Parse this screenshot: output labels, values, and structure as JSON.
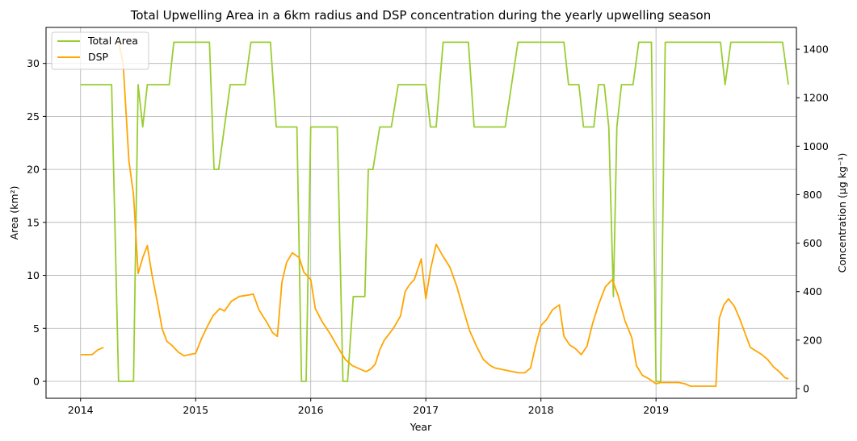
{
  "chart_data": {
    "type": "line",
    "title": "Total Upwelling Area in a 6km radius and DSP concentration during the yearly upwelling season",
    "xlabel": "Year",
    "ylabel_left": "Area (km²)",
    "ylabel_right": "Concentration (µg kg⁻¹)",
    "xlim": [
      2013.7,
      2020.22
    ],
    "ylim_left": [
      -1.6,
      33.4
    ],
    "ylim_right": [
      -40,
      1490
    ],
    "x_ticks": [
      2014,
      2015,
      2016,
      2017,
      2018,
      2019
    ],
    "x_tick_labels": [
      "2014",
      "2015",
      "2016",
      "2017",
      "2018",
      "2019"
    ],
    "y_ticks_left": [
      0,
      5,
      10,
      15,
      20,
      25,
      30
    ],
    "y_ticks_right": [
      0,
      200,
      400,
      600,
      800,
      1000,
      1200,
      1400
    ],
    "grid": true,
    "legend": "top-left",
    "series": [
      {
        "name": "Total Area",
        "axis": "left",
        "color": "#9acd32",
        "segments": [
          [
            [
              2014.0,
              28
            ],
            [
              2014.27,
              28
            ],
            [
              2014.33,
              0
            ],
            [
              2014.46,
              0
            ],
            [
              2014.5,
              28
            ],
            [
              2014.54,
              24
            ],
            [
              2014.58,
              28
            ],
            [
              2014.77,
              28
            ],
            [
              2014.81,
              32
            ],
            [
              2015.12,
              32
            ],
            [
              2015.16,
              20
            ],
            [
              2015.2,
              20
            ],
            [
              2015.3,
              28
            ],
            [
              2015.43,
              28
            ],
            [
              2015.48,
              32
            ],
            [
              2015.65,
              32
            ],
            [
              2015.7,
              24
            ],
            [
              2015.88,
              24
            ],
            [
              2015.92,
              0
            ],
            [
              2015.96,
              0
            ],
            [
              2016.0,
              24
            ],
            [
              2016.23,
              24
            ],
            [
              2016.28,
              0
            ],
            [
              2016.32,
              0
            ],
            [
              2016.37,
              8
            ],
            [
              2016.47,
              8
            ],
            [
              2016.5,
              20
            ],
            [
              2016.54,
              20
            ],
            [
              2016.6,
              24
            ],
            [
              2016.7,
              24
            ],
            [
              2016.76,
              28
            ],
            [
              2017.0,
              28
            ],
            [
              2017.04,
              24
            ],
            [
              2017.09,
              24
            ],
            [
              2017.15,
              32
            ],
            [
              2017.37,
              32
            ],
            [
              2017.42,
              24
            ],
            [
              2017.69,
              24
            ],
            [
              2017.8,
              32
            ],
            [
              2018.2,
              32
            ],
            [
              2018.24,
              28
            ],
            [
              2018.33,
              28
            ],
            [
              2018.37,
              24
            ],
            [
              2018.46,
              24
            ],
            [
              2018.5,
              28
            ],
            [
              2018.55,
              28
            ],
            [
              2018.59,
              24
            ],
            [
              2018.63,
              8
            ],
            [
              2018.66,
              24
            ],
            [
              2018.7,
              28
            ],
            [
              2018.8,
              28
            ],
            [
              2018.85,
              32
            ],
            [
              2018.96,
              32
            ],
            [
              2019.0,
              0
            ],
            [
              2019.04,
              0
            ],
            [
              2019.08,
              32
            ],
            [
              2019.56,
              32
            ],
            [
              2019.6,
              28
            ],
            [
              2019.65,
              32
            ],
            [
              2020.1,
              32
            ],
            [
              2020.15,
              28
            ]
          ]
        ]
      },
      {
        "name": "DSP",
        "axis": "right",
        "color": "#ffa500",
        "segments": [
          [
            [
              2014.0,
              140
            ],
            [
              2014.1,
              140
            ],
            [
              2014.15,
              160
            ],
            [
              2014.2,
              170
            ]
          ],
          [
            [
              2014.33,
              1430
            ],
            [
              2014.37,
              1340
            ],
            [
              2014.42,
              940
            ],
            [
              2014.46,
              800
            ],
            [
              2014.5,
              475
            ],
            [
              2014.54,
              540
            ],
            [
              2014.58,
              590
            ],
            [
              2014.62,
              470
            ],
            [
              2014.67,
              350
            ],
            [
              2014.71,
              245
            ],
            [
              2014.75,
              195
            ],
            [
              2014.79,
              180
            ],
            [
              2014.85,
              150
            ],
            [
              2014.9,
              135
            ],
            [
              2014.94,
              140
            ],
            [
              2015.0,
              145
            ],
            [
              2015.05,
              205
            ],
            [
              2015.1,
              255
            ],
            [
              2015.15,
              300
            ],
            [
              2015.21,
              330
            ],
            [
              2015.25,
              320
            ],
            [
              2015.31,
              360
            ],
            [
              2015.38,
              380
            ],
            [
              2015.45,
              385
            ],
            [
              2015.5,
              390
            ],
            [
              2015.55,
              325
            ],
            [
              2015.61,
              280
            ],
            [
              2015.67,
              230
            ],
            [
              2015.71,
              215
            ],
            [
              2015.75,
              440
            ],
            [
              2015.79,
              520
            ],
            [
              2015.84,
              560
            ],
            [
              2015.9,
              540
            ],
            [
              2015.94,
              480
            ],
            [
              2016.0,
              450
            ],
            [
              2016.04,
              330
            ],
            [
              2016.1,
              275
            ],
            [
              2016.17,
              225
            ],
            [
              2016.23,
              175
            ],
            [
              2016.3,
              120
            ],
            [
              2016.36,
              95
            ],
            [
              2016.43,
              80
            ],
            [
              2016.48,
              70
            ],
            [
              2016.52,
              80
            ],
            [
              2016.56,
              100
            ],
            [
              2016.6,
              160
            ],
            [
              2016.64,
              200
            ],
            [
              2016.72,
              250
            ],
            [
              2016.78,
              300
            ],
            [
              2016.82,
              400
            ],
            [
              2016.86,
              430
            ],
            [
              2016.9,
              450
            ],
            [
              2016.96,
              535
            ],
            [
              2017.0,
              370
            ],
            [
              2017.04,
              490
            ],
            [
              2017.09,
              595
            ],
            [
              2017.15,
              545
            ],
            [
              2017.21,
              500
            ],
            [
              2017.27,
              420
            ],
            [
              2017.33,
              320
            ],
            [
              2017.38,
              240
            ],
            [
              2017.44,
              175
            ],
            [
              2017.5,
              120
            ],
            [
              2017.56,
              95
            ],
            [
              2017.6,
              85
            ],
            [
              2017.65,
              80
            ],
            [
              2017.7,
              75
            ],
            [
              2017.75,
              70
            ],
            [
              2017.81,
              65
            ],
            [
              2017.86,
              65
            ],
            [
              2017.91,
              85
            ],
            [
              2017.95,
              170
            ],
            [
              2018.0,
              260
            ],
            [
              2018.05,
              285
            ],
            [
              2018.1,
              325
            ],
            [
              2018.16,
              345
            ],
            [
              2018.2,
              215
            ],
            [
              2018.25,
              180
            ],
            [
              2018.3,
              165
            ],
            [
              2018.35,
              140
            ],
            [
              2018.4,
              175
            ],
            [
              2018.45,
              270
            ],
            [
              2018.5,
              345
            ],
            [
              2018.56,
              420
            ],
            [
              2018.62,
              450
            ],
            [
              2018.67,
              385
            ],
            [
              2018.73,
              280
            ],
            [
              2018.79,
              210
            ],
            [
              2018.83,
              95
            ],
            [
              2018.88,
              55
            ],
            [
              2018.94,
              40
            ],
            [
              2019.0,
              20
            ],
            [
              2019.04,
              25
            ],
            [
              2019.1,
              25
            ],
            [
              2019.2,
              25
            ],
            [
              2019.25,
              20
            ],
            [
              2019.3,
              10
            ],
            [
              2019.4,
              10
            ],
            [
              2019.52,
              10
            ],
            [
              2019.55,
              290
            ],
            [
              2019.59,
              345
            ],
            [
              2019.63,
              370
            ],
            [
              2019.68,
              340
            ],
            [
              2019.73,
              285
            ],
            [
              2019.78,
              220
            ],
            [
              2019.82,
              170
            ],
            [
              2019.87,
              155
            ],
            [
              2019.92,
              140
            ],
            [
              2019.97,
              120
            ],
            [
              2020.02,
              90
            ],
            [
              2020.07,
              70
            ],
            [
              2020.12,
              45
            ],
            [
              2020.15,
              40
            ]
          ]
        ]
      }
    ]
  }
}
